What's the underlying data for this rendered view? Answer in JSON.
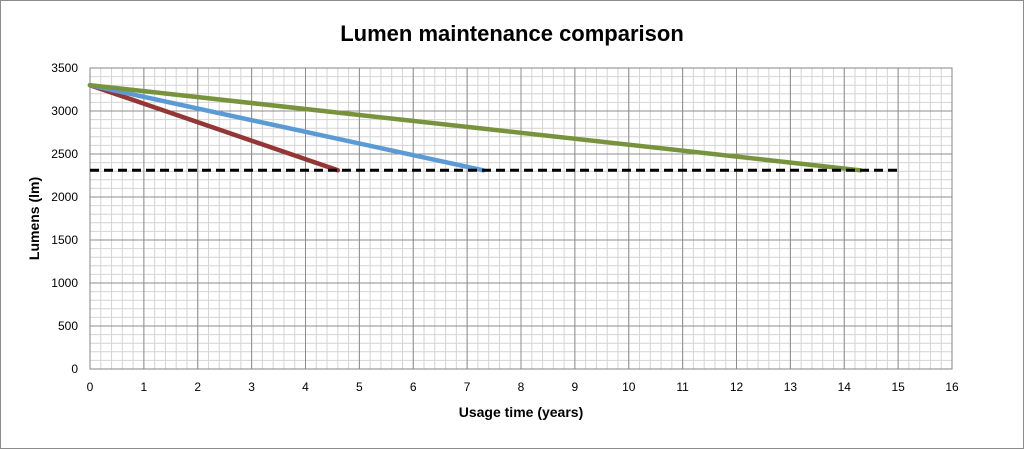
{
  "chart_data": {
    "type": "line",
    "title": "Lumen maintenance comparison",
    "xlabel": "Usage time (years)",
    "ylabel": "Lumens (lm)",
    "xlim": [
      0,
      16
    ],
    "ylim": [
      0,
      3500
    ],
    "x_ticks": [
      0,
      1,
      2,
      3,
      4,
      5,
      6,
      7,
      8,
      9,
      10,
      11,
      12,
      13,
      14,
      15,
      16
    ],
    "y_ticks": [
      0,
      500,
      1000,
      1500,
      2000,
      2500,
      3000,
      3500
    ],
    "x_minor_step": 0.2,
    "y_minor_step": 100,
    "grid": true,
    "legend": "none",
    "series": [
      {
        "color": "#943634",
        "style": "solid",
        "points": [
          [
            0,
            3300
          ],
          [
            4.6,
            2310
          ]
        ]
      },
      {
        "color": "#5b9bd5",
        "style": "solid",
        "points": [
          [
            0,
            3300
          ],
          [
            7.3,
            2310
          ]
        ]
      },
      {
        "color": "#77933c",
        "style": "solid",
        "points": [
          [
            0,
            3300
          ],
          [
            14.3,
            2310
          ]
        ]
      },
      {
        "color": "#000000",
        "style": "dashed",
        "points": [
          [
            0,
            2310
          ],
          [
            15,
            2310
          ]
        ]
      }
    ]
  }
}
